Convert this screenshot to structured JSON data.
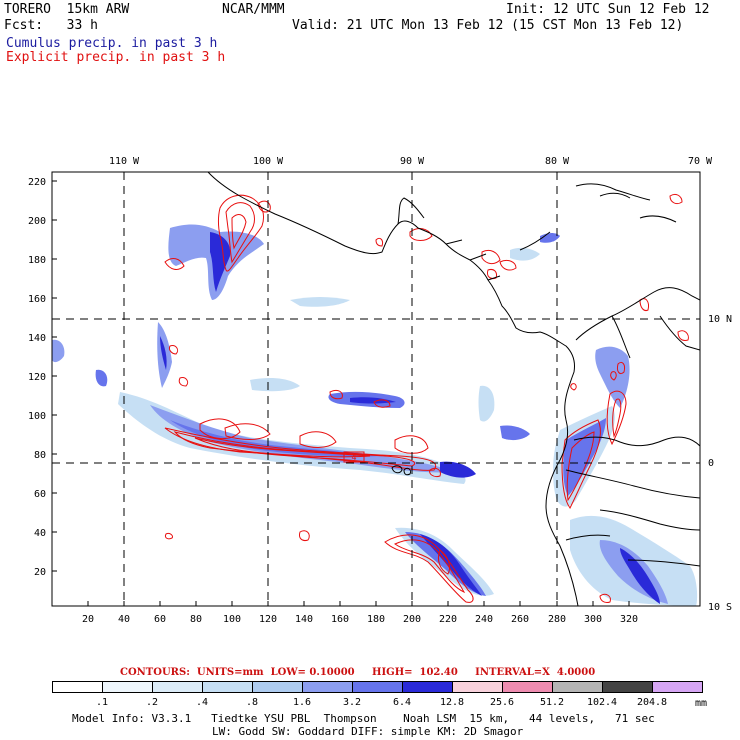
{
  "header": {
    "model": "TORERO  15km ARW",
    "org": "NCAR/MMM",
    "init": "Init: 12 UTC Sun 12 Feb 12",
    "fcst": "Fcst:   33 h",
    "valid": "Valid: 21 UTC Mon 13 Feb 12 (15 CST Mon 13 Feb 12)",
    "cumulus": "Cumulus precip. in past 3 h",
    "explicit": "Explicit precip. in past 3 h"
  },
  "map": {
    "lon_labels": [
      "110 W",
      "100 W",
      "90 W",
      "80 W",
      "70 W"
    ],
    "lat_labels": [
      "10 N",
      "0",
      "10 S"
    ],
    "y_ticks": [
      "220",
      "200",
      "180",
      "160",
      "140",
      "120",
      "100",
      "80",
      "60",
      "40",
      "20"
    ],
    "x_ticks": [
      "20",
      "40",
      "60",
      "80",
      "100",
      "120",
      "140",
      "160",
      "180",
      "200",
      "220",
      "240",
      "260",
      "280",
      "300",
      "320"
    ],
    "marker": "4"
  },
  "legend": {
    "contours": "CONTOURS:  UNITS=mm  LOW= 0.10000     HIGH=  102.40     INTERVAL=X  4.0000",
    "units": "mm",
    "labels": [
      ".1",
      ".2",
      ".4",
      ".8",
      "1.6",
      "3.2",
      "6.4",
      "12.8",
      "25.6",
      "51.2",
      "102.4",
      "204.8"
    ],
    "colors": [
      "#ffffff",
      "#eef6fc",
      "#dcecf8",
      "#c6dff4",
      "#aeccf0",
      "#8c9ef0",
      "#6674ec",
      "#2a2ad8",
      "#f8d2dc",
      "#ee8cb0",
      "#b4b4b4",
      "#444444",
      "#d6a6f4"
    ]
  },
  "footer": {
    "line1": "Model Info: V3.3.1   Tiedtke YSU PBL  Thompson    Noah LSM  15 km,   44 levels,   71 sec",
    "line2": "LW: Godd SW: Goddard DIFF: simple KM: 2D Smagor"
  }
}
